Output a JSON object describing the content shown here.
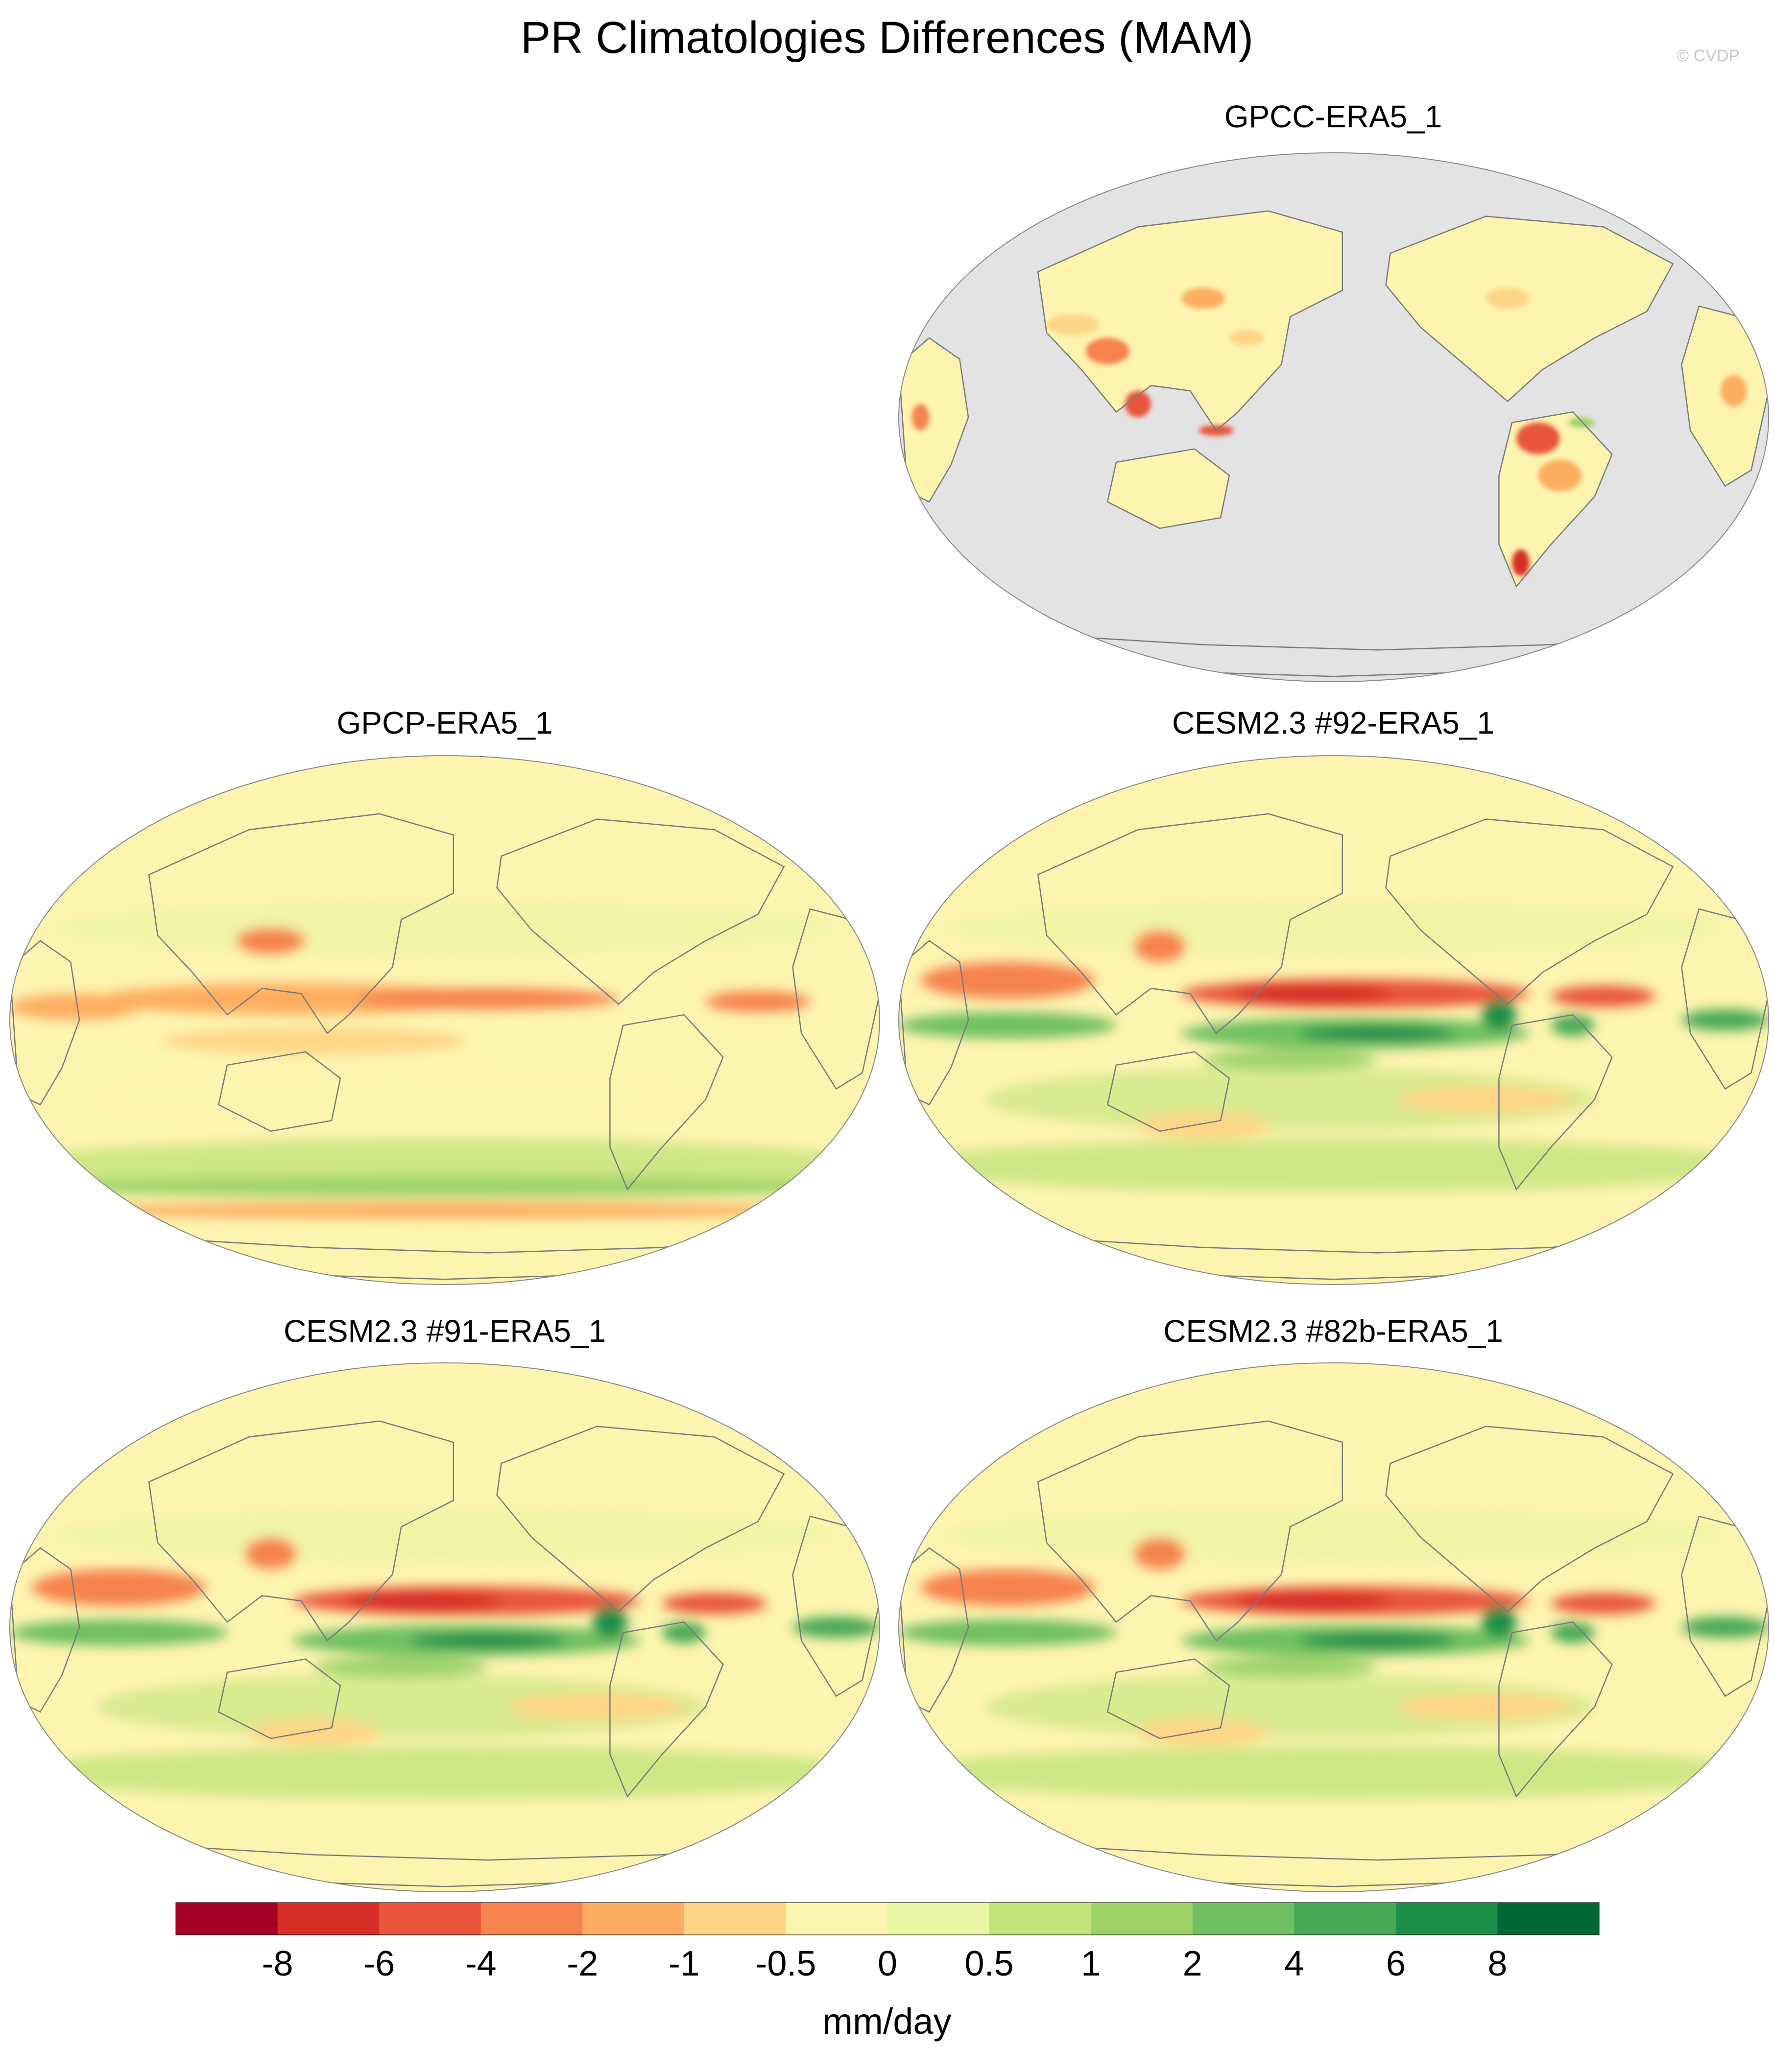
{
  "title": "PR Climatologies Differences (MAM)",
  "credit": "© CVDP",
  "panels": [
    {
      "title": "GPCC-ERA5_1",
      "data_mask": "land_only",
      "ocean_color": "#e3e3e3"
    },
    {
      "title": "GPCP-ERA5_1",
      "data_mask": "global"
    },
    {
      "title": "CESM2.3 #92-ERA5_1",
      "data_mask": "global"
    },
    {
      "title": "CESM2.3 #91-ERA5_1",
      "data_mask": "global"
    },
    {
      "title": "CESM2.3 #82b-ERA5_1",
      "data_mask": "global"
    }
  ],
  "colorbar": {
    "units": "mm/day",
    "tick_labels": [
      "-8",
      "-6",
      "-4",
      "-2",
      "-1",
      "-0.5",
      "0",
      "0.5",
      "1",
      "2",
      "4",
      "6",
      "8"
    ],
    "colors": [
      "#a50026",
      "#d62f27",
      "#e8553a",
      "#f6824d",
      "#fdad61",
      "#fed586",
      "#fdf4b0",
      "#e9f5a3",
      "#c2e47b",
      "#9fd36a",
      "#6fbf62",
      "#47a955",
      "#1d8f49",
      "#006837"
    ]
  }
}
